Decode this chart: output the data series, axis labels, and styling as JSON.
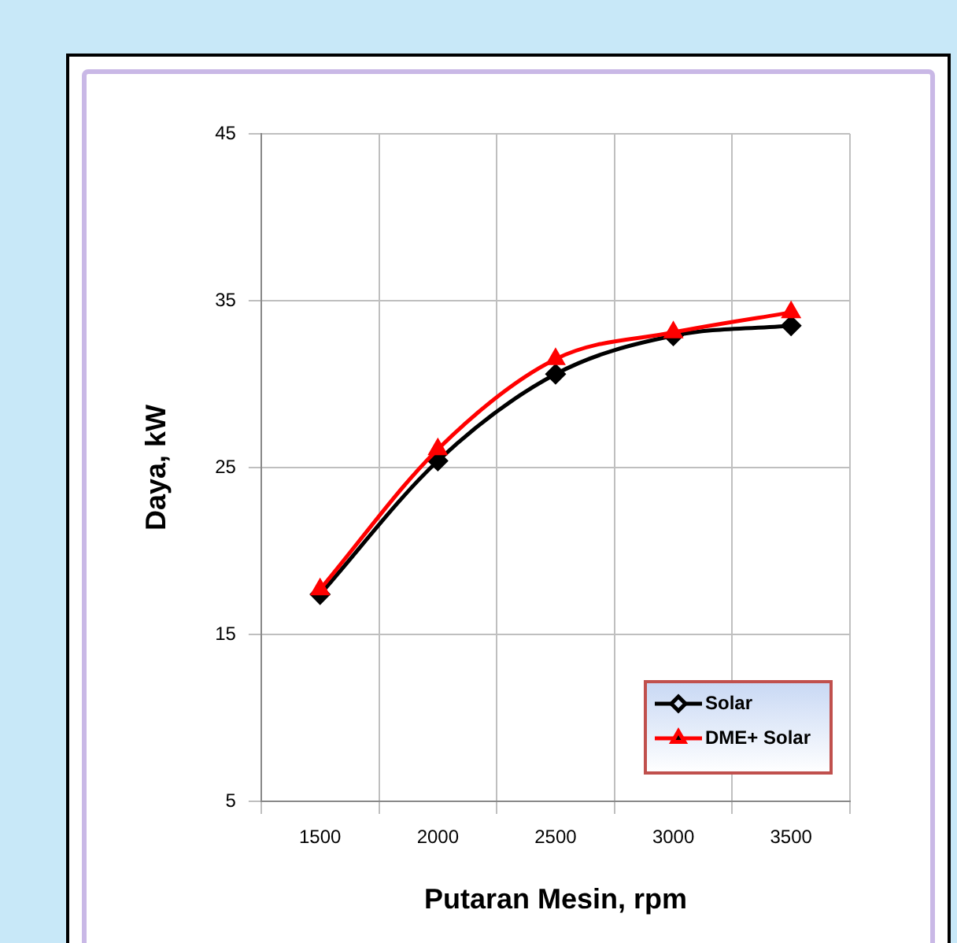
{
  "chart_data": {
    "type": "line",
    "xlabel": "Putaran Mesin, rpm",
    "ylabel": "Daya, kW",
    "categories": [
      "1500",
      "2000",
      "2500",
      "3000",
      "3500"
    ],
    "series": [
      {
        "name": "Solar",
        "color": "#000000",
        "marker": "diamond",
        "values": [
          17.4,
          25.4,
          30.6,
          32.9,
          33.5
        ]
      },
      {
        "name": "DME+ Solar",
        "color": "#ff0000",
        "marker": "triangle",
        "values": [
          17.7,
          26.1,
          31.5,
          33.1,
          34.3
        ]
      }
    ],
    "ylim": [
      5,
      45
    ],
    "yticks": [
      5,
      15,
      25,
      35,
      45
    ],
    "grid": true,
    "legend": "bottom right"
  }
}
